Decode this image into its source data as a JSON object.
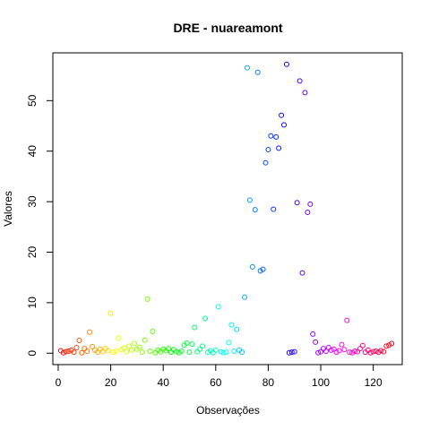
{
  "chart_data": {
    "type": "scatter",
    "title": "DRE - nuareamont",
    "xlabel": "Observações",
    "ylabel": "Valores",
    "xlim": [
      -2.04,
      131.04
    ],
    "ylim": [
      -2.26,
      59.46
    ],
    "xticks": [
      0,
      20,
      40,
      60,
      80,
      100,
      120
    ],
    "yticks": [
      0,
      10,
      20,
      30,
      40,
      50
    ],
    "grid": false,
    "legend": "none",
    "marker": "open-circle",
    "color_scheme": "rainbow by observation index",
    "points": [
      {
        "x": 1,
        "y": 0.5,
        "color": "#FF0000"
      },
      {
        "x": 2,
        "y": 0.1,
        "color": "#FF0C00"
      },
      {
        "x": 3,
        "y": 0.3,
        "color": "#FF1800"
      },
      {
        "x": 4,
        "y": 0.4,
        "color": "#FF2400"
      },
      {
        "x": 5,
        "y": 0.6,
        "color": "#FF3000"
      },
      {
        "x": 6,
        "y": 0.2,
        "color": "#FF3C00"
      },
      {
        "x": 7,
        "y": 1.1,
        "color": "#FF4800"
      },
      {
        "x": 8,
        "y": 2.5,
        "color": "#FF5400"
      },
      {
        "x": 9,
        "y": 0.1,
        "color": "#FF6000"
      },
      {
        "x": 10,
        "y": 0.9,
        "color": "#FF6C00"
      },
      {
        "x": 11,
        "y": 0.4,
        "color": "#FF7800"
      },
      {
        "x": 12,
        "y": 4.2,
        "color": "#FF8400"
      },
      {
        "x": 13,
        "y": 1.3,
        "color": "#FF9000"
      },
      {
        "x": 14,
        "y": 0.6,
        "color": "#FF9C00"
      },
      {
        "x": 15,
        "y": 0.2,
        "color": "#FFA800"
      },
      {
        "x": 16,
        "y": 0.8,
        "color": "#FFB400"
      },
      {
        "x": 17,
        "y": 0.3,
        "color": "#FFC000"
      },
      {
        "x": 18,
        "y": 0.9,
        "color": "#FFCC00"
      },
      {
        "x": 19,
        "y": 0.5,
        "color": "#FFD800"
      },
      {
        "x": 20,
        "y": 7.9,
        "color": "#FFE400"
      },
      {
        "x": 21,
        "y": 0.2,
        "color": "#FFF000"
      },
      {
        "x": 22,
        "y": 0.4,
        "color": "#FFFC00"
      },
      {
        "x": 23,
        "y": 3.0,
        "color": "#F4FF00"
      },
      {
        "x": 24,
        "y": 0.7,
        "color": "#E8FF00"
      },
      {
        "x": 25,
        "y": 1.0,
        "color": "#DCFF00"
      },
      {
        "x": 26,
        "y": 0.3,
        "color": "#D0FF00"
      },
      {
        "x": 27,
        "y": 1.4,
        "color": "#C4FF00"
      },
      {
        "x": 28,
        "y": 0.6,
        "color": "#B8FF00"
      },
      {
        "x": 29,
        "y": 1.9,
        "color": "#ACFF00"
      },
      {
        "x": 30,
        "y": 0.8,
        "color": "#A0FF00"
      },
      {
        "x": 31,
        "y": 1.2,
        "color": "#94FF00"
      },
      {
        "x": 32,
        "y": 0.2,
        "color": "#88FF00"
      },
      {
        "x": 33,
        "y": 2.6,
        "color": "#7CFF00"
      },
      {
        "x": 34,
        "y": 10.7,
        "color": "#70FF00"
      },
      {
        "x": 35,
        "y": 0.4,
        "color": "#64FF00"
      },
      {
        "x": 36,
        "y": 4.3,
        "color": "#58FF00"
      },
      {
        "x": 37,
        "y": 0.1,
        "color": "#4CFF00"
      },
      {
        "x": 38,
        "y": 0.6,
        "color": "#40FF00"
      },
      {
        "x": 39,
        "y": 0.3,
        "color": "#34FF00"
      },
      {
        "x": 40,
        "y": 0.8,
        "color": "#28FF00"
      },
      {
        "x": 41,
        "y": 0.5,
        "color": "#1CFF00"
      },
      {
        "x": 42,
        "y": 0.9,
        "color": "#10FF00"
      },
      {
        "x": 43,
        "y": 0.2,
        "color": "#04FF00"
      },
      {
        "x": 44,
        "y": 0.7,
        "color": "#00FF08"
      },
      {
        "x": 45,
        "y": 0.3,
        "color": "#00FF14"
      },
      {
        "x": 46,
        "y": 0.1,
        "color": "#00FF20"
      },
      {
        "x": 47,
        "y": 0.4,
        "color": "#00FF2C"
      },
      {
        "x": 48,
        "y": 1.6,
        "color": "#00FF38"
      },
      {
        "x": 49,
        "y": 2.0,
        "color": "#00FF44"
      },
      {
        "x": 50,
        "y": 0.2,
        "color": "#00FF50"
      },
      {
        "x": 51,
        "y": 1.8,
        "color": "#00FF5C"
      },
      {
        "x": 52,
        "y": 5.1,
        "color": "#00FF68"
      },
      {
        "x": 53,
        "y": 0.3,
        "color": "#00FF74"
      },
      {
        "x": 54,
        "y": 0.8,
        "color": "#00FF80"
      },
      {
        "x": 55,
        "y": 1.4,
        "color": "#00FF8C"
      },
      {
        "x": 56,
        "y": 6.9,
        "color": "#00FF98"
      },
      {
        "x": 57,
        "y": 0.2,
        "color": "#00FFA4"
      },
      {
        "x": 58,
        "y": 0.5,
        "color": "#00FFB0"
      },
      {
        "x": 59,
        "y": 0.1,
        "color": "#00FFBC"
      },
      {
        "x": 60,
        "y": 0.6,
        "color": "#00FFC8"
      },
      {
        "x": 61,
        "y": 9.2,
        "color": "#00FFD4"
      },
      {
        "x": 62,
        "y": 0.3,
        "color": "#00FFE0"
      },
      {
        "x": 63,
        "y": 0.1,
        "color": "#00FFEC"
      },
      {
        "x": 64,
        "y": 0.2,
        "color": "#00FFF8"
      },
      {
        "x": 65,
        "y": 2.1,
        "color": "#00FAFF"
      },
      {
        "x": 66,
        "y": 5.6,
        "color": "#00EEFF"
      },
      {
        "x": 67,
        "y": 0.4,
        "color": "#00E2FF"
      },
      {
        "x": 68,
        "y": 4.7,
        "color": "#00D6FF"
      },
      {
        "x": 69,
        "y": 0.6,
        "color": "#00CAFF"
      },
      {
        "x": 70,
        "y": 0.2,
        "color": "#00BEFF"
      },
      {
        "x": 71,
        "y": 11.1,
        "color": "#00B2FF"
      },
      {
        "x": 72,
        "y": 56.5,
        "color": "#00A6FF"
      },
      {
        "x": 73,
        "y": 30.3,
        "color": "#009AFF"
      },
      {
        "x": 74,
        "y": 17.1,
        "color": "#008EFF"
      },
      {
        "x": 75,
        "y": 28.4,
        "color": "#0082FF"
      },
      {
        "x": 76,
        "y": 55.6,
        "color": "#0076FF"
      },
      {
        "x": 77,
        "y": 16.3,
        "color": "#006AFF"
      },
      {
        "x": 78,
        "y": 16.6,
        "color": "#005EFF"
      },
      {
        "x": 79,
        "y": 37.7,
        "color": "#0052FF"
      },
      {
        "x": 80,
        "y": 40.3,
        "color": "#0046FF"
      },
      {
        "x": 81,
        "y": 43.0,
        "color": "#003AFF"
      },
      {
        "x": 82,
        "y": 28.5,
        "color": "#002EFF"
      },
      {
        "x": 83,
        "y": 42.8,
        "color": "#0022FF"
      },
      {
        "x": 84,
        "y": 40.6,
        "color": "#0016FF"
      },
      {
        "x": 85,
        "y": 47.1,
        "color": "#000AFF"
      },
      {
        "x": 86,
        "y": 45.2,
        "color": "#0200FF"
      },
      {
        "x": 87,
        "y": 57.2,
        "color": "#0E00FF"
      },
      {
        "x": 88,
        "y": 0.1,
        "color": "#1A00FF"
      },
      {
        "x": 89,
        "y": 0.2,
        "color": "#2600FF"
      },
      {
        "x": 90,
        "y": 0.3,
        "color": "#3200FF"
      },
      {
        "x": 91,
        "y": 29.8,
        "color": "#3E00FF"
      },
      {
        "x": 92,
        "y": 53.9,
        "color": "#4A00FF"
      },
      {
        "x": 93,
        "y": 15.9,
        "color": "#5600FF"
      },
      {
        "x": 94,
        "y": 51.6,
        "color": "#6200FF"
      },
      {
        "x": 95,
        "y": 27.9,
        "color": "#6E00FF"
      },
      {
        "x": 96,
        "y": 29.5,
        "color": "#7A00FF"
      },
      {
        "x": 97,
        "y": 3.8,
        "color": "#8600FF"
      },
      {
        "x": 98,
        "y": 2.2,
        "color": "#9200FF"
      },
      {
        "x": 99,
        "y": 0.1,
        "color": "#9E00FF"
      },
      {
        "x": 100,
        "y": 0.3,
        "color": "#AA00FF"
      },
      {
        "x": 101,
        "y": 0.9,
        "color": "#B600FF"
      },
      {
        "x": 102,
        "y": 0.4,
        "color": "#C200FF"
      },
      {
        "x": 103,
        "y": 1.1,
        "color": "#CE00FF"
      },
      {
        "x": 104,
        "y": 0.6,
        "color": "#DA00FF"
      },
      {
        "x": 105,
        "y": 0.8,
        "color": "#E600FF"
      },
      {
        "x": 106,
        "y": 0.2,
        "color": "#F200FF"
      },
      {
        "x": 107,
        "y": 0.5,
        "color": "#FE00FF"
      },
      {
        "x": 108,
        "y": 1.7,
        "color": "#FF00F4"
      },
      {
        "x": 109,
        "y": 0.7,
        "color": "#FF00E8"
      },
      {
        "x": 110,
        "y": 6.5,
        "color": "#FF00DC"
      },
      {
        "x": 111,
        "y": 0.2,
        "color": "#FF00D0"
      },
      {
        "x": 112,
        "y": 0.1,
        "color": "#FF00C4"
      },
      {
        "x": 113,
        "y": 0.4,
        "color": "#FF00B8"
      },
      {
        "x": 114,
        "y": 0.3,
        "color": "#FF00AC"
      },
      {
        "x": 115,
        "y": 0.9,
        "color": "#FF00A0"
      },
      {
        "x": 116,
        "y": 1.5,
        "color": "#FF0094"
      },
      {
        "x": 117,
        "y": 0.2,
        "color": "#FF0088"
      },
      {
        "x": 118,
        "y": 0.6,
        "color": "#FF007C"
      },
      {
        "x": 119,
        "y": 0.1,
        "color": "#FF0070"
      },
      {
        "x": 120,
        "y": 0.3,
        "color": "#FF0064"
      },
      {
        "x": 121,
        "y": 0.4,
        "color": "#FF0058"
      },
      {
        "x": 122,
        "y": 0.2,
        "color": "#FF004C"
      },
      {
        "x": 123,
        "y": 0.5,
        "color": "#FF0040"
      },
      {
        "x": 124,
        "y": 0.3,
        "color": "#FF0034"
      },
      {
        "x": 125,
        "y": 1.4,
        "color": "#FF0028"
      },
      {
        "x": 126,
        "y": 1.6,
        "color": "#FF001C"
      },
      {
        "x": 127,
        "y": 1.9,
        "color": "#FF0010"
      }
    ]
  }
}
